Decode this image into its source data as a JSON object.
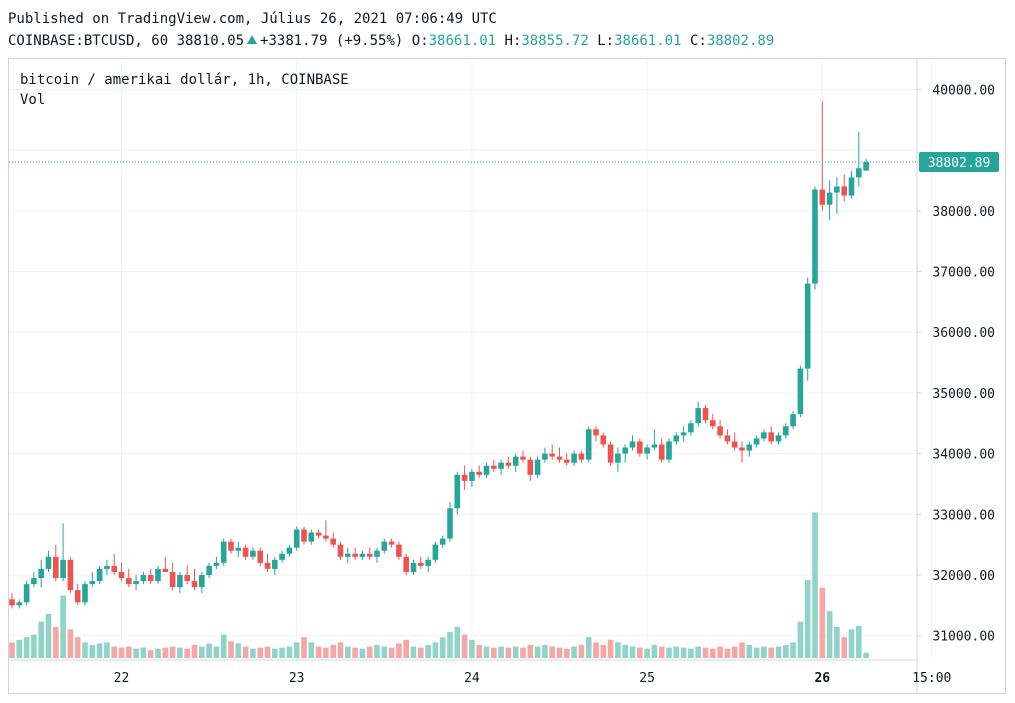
{
  "header": {
    "published": "Published on TradingView.com, Július 26, 2021 07:06:49 UTC",
    "symbol": "COINBASE:BTCUSD, 60",
    "last": "38810.05",
    "change": "+3381.79 (+9.55%)",
    "o_label": "O:",
    "o": "38661.01",
    "h_label": "H:",
    "h": "38855.72",
    "l_label": "L:",
    "l": "38661.01",
    "c_label": "C:",
    "c": "38802.89"
  },
  "legend": {
    "title": "bitcoin / amerikai dollár, 1h, COINBASE",
    "vol": "Vol"
  },
  "colors": {
    "up": "#26a69a",
    "down": "#ef5350",
    "vol_up": "#8fd3c9",
    "vol_down": "#f4a7a5",
    "grid": "#f0f3fa"
  },
  "chart_data": {
    "type": "candlestick",
    "ylim": [
      30600,
      40500
    ],
    "yticks": [
      "31000.00",
      "32000.00",
      "33000.00",
      "34000.00",
      "35000.00",
      "36000.00",
      "37000.00",
      "38000.00",
      "39000.00",
      "40000.00"
    ],
    "xticks": [
      {
        "label": "22",
        "i": 15
      },
      {
        "label": "23",
        "i": 39
      },
      {
        "label": "24",
        "i": 63
      },
      {
        "label": "25",
        "i": 87
      },
      {
        "label": "26",
        "i": 111
      },
      {
        "label": "15:00",
        "i": 126
      }
    ],
    "current_price": "38802.89",
    "bars": [
      {
        "o": 31600,
        "h": 31700,
        "l": 31450,
        "c": 31500,
        "v": 0.3
      },
      {
        "o": 31500,
        "h": 31600,
        "l": 31450,
        "c": 31550,
        "v": 0.35
      },
      {
        "o": 31550,
        "h": 31900,
        "l": 31500,
        "c": 31850,
        "v": 0.4
      },
      {
        "o": 31850,
        "h": 32050,
        "l": 31800,
        "c": 31950,
        "v": 0.45
      },
      {
        "o": 31950,
        "h": 32250,
        "l": 31800,
        "c": 32100,
        "v": 0.7
      },
      {
        "o": 32100,
        "h": 32400,
        "l": 32050,
        "c": 32300,
        "v": 0.85
      },
      {
        "o": 32300,
        "h": 32500,
        "l": 31900,
        "c": 31950,
        "v": 0.6
      },
      {
        "o": 31950,
        "h": 32850,
        "l": 31900,
        "c": 32250,
        "v": 1.2
      },
      {
        "o": 32250,
        "h": 32300,
        "l": 31700,
        "c": 31750,
        "v": 0.55
      },
      {
        "o": 31750,
        "h": 31850,
        "l": 31500,
        "c": 31550,
        "v": 0.4
      },
      {
        "o": 31550,
        "h": 31900,
        "l": 31500,
        "c": 31850,
        "v": 0.3
      },
      {
        "o": 31850,
        "h": 32050,
        "l": 31800,
        "c": 31900,
        "v": 0.25
      },
      {
        "o": 31900,
        "h": 32150,
        "l": 31850,
        "c": 32100,
        "v": 0.28
      },
      {
        "o": 32100,
        "h": 32250,
        "l": 32000,
        "c": 32150,
        "v": 0.3
      },
      {
        "o": 32150,
        "h": 32350,
        "l": 32000,
        "c": 32050,
        "v": 0.22
      },
      {
        "o": 32050,
        "h": 32200,
        "l": 31900,
        "c": 31950,
        "v": 0.2
      },
      {
        "o": 31950,
        "h": 32100,
        "l": 31800,
        "c": 31850,
        "v": 0.22
      },
      {
        "o": 31850,
        "h": 32000,
        "l": 31750,
        "c": 31900,
        "v": 0.18
      },
      {
        "o": 31900,
        "h": 32050,
        "l": 31850,
        "c": 32000,
        "v": 0.2
      },
      {
        "o": 32000,
        "h": 32100,
        "l": 31850,
        "c": 31900,
        "v": 0.15
      },
      {
        "o": 31900,
        "h": 32150,
        "l": 31850,
        "c": 32100,
        "v": 0.18
      },
      {
        "o": 32100,
        "h": 32300,
        "l": 32050,
        "c": 32050,
        "v": 0.2
      },
      {
        "o": 32050,
        "h": 32200,
        "l": 31750,
        "c": 31800,
        "v": 0.22
      },
      {
        "o": 31800,
        "h": 32050,
        "l": 31700,
        "c": 32000,
        "v": 0.2
      },
      {
        "o": 32000,
        "h": 32150,
        "l": 31850,
        "c": 31900,
        "v": 0.18
      },
      {
        "o": 31900,
        "h": 32100,
        "l": 31750,
        "c": 31800,
        "v": 0.25
      },
      {
        "o": 31800,
        "h": 32050,
        "l": 31700,
        "c": 32000,
        "v": 0.22
      },
      {
        "o": 32000,
        "h": 32200,
        "l": 31950,
        "c": 32150,
        "v": 0.28
      },
      {
        "o": 32150,
        "h": 32300,
        "l": 32100,
        "c": 32200,
        "v": 0.22
      },
      {
        "o": 32200,
        "h": 32600,
        "l": 32150,
        "c": 32550,
        "v": 0.45
      },
      {
        "o": 32550,
        "h": 32600,
        "l": 32350,
        "c": 32400,
        "v": 0.32
      },
      {
        "o": 32400,
        "h": 32550,
        "l": 32300,
        "c": 32450,
        "v": 0.28
      },
      {
        "o": 32450,
        "h": 32500,
        "l": 32250,
        "c": 32300,
        "v": 0.22
      },
      {
        "o": 32300,
        "h": 32450,
        "l": 32250,
        "c": 32400,
        "v": 0.18
      },
      {
        "o": 32400,
        "h": 32450,
        "l": 32150,
        "c": 32200,
        "v": 0.2
      },
      {
        "o": 32200,
        "h": 32350,
        "l": 32050,
        "c": 32100,
        "v": 0.22
      },
      {
        "o": 32100,
        "h": 32300,
        "l": 32000,
        "c": 32250,
        "v": 0.18
      },
      {
        "o": 32250,
        "h": 32400,
        "l": 32200,
        "c": 32350,
        "v": 0.2
      },
      {
        "o": 32350,
        "h": 32500,
        "l": 32300,
        "c": 32450,
        "v": 0.22
      },
      {
        "o": 32450,
        "h": 32800,
        "l": 32400,
        "c": 32750,
        "v": 0.3
      },
      {
        "o": 32750,
        "h": 32800,
        "l": 32500,
        "c": 32550,
        "v": 0.4
      },
      {
        "o": 32550,
        "h": 32750,
        "l": 32500,
        "c": 32700,
        "v": 0.3
      },
      {
        "o": 32700,
        "h": 32750,
        "l": 32600,
        "c": 32650,
        "v": 0.22
      },
      {
        "o": 32650,
        "h": 32900,
        "l": 32550,
        "c": 32600,
        "v": 0.2
      },
      {
        "o": 32600,
        "h": 32700,
        "l": 32450,
        "c": 32500,
        "v": 0.25
      },
      {
        "o": 32500,
        "h": 32550,
        "l": 32250,
        "c": 32300,
        "v": 0.3
      },
      {
        "o": 32300,
        "h": 32450,
        "l": 32200,
        "c": 32350,
        "v": 0.22
      },
      {
        "o": 32350,
        "h": 32450,
        "l": 32250,
        "c": 32300,
        "v": 0.2
      },
      {
        "o": 32300,
        "h": 32400,
        "l": 32250,
        "c": 32350,
        "v": 0.18
      },
      {
        "o": 32350,
        "h": 32450,
        "l": 32250,
        "c": 32300,
        "v": 0.22
      },
      {
        "o": 32300,
        "h": 32450,
        "l": 32200,
        "c": 32400,
        "v": 0.25
      },
      {
        "o": 32400,
        "h": 32600,
        "l": 32350,
        "c": 32550,
        "v": 0.22
      },
      {
        "o": 32550,
        "h": 32600,
        "l": 32450,
        "c": 32500,
        "v": 0.2
      },
      {
        "o": 32500,
        "h": 32550,
        "l": 32250,
        "c": 32300,
        "v": 0.28
      },
      {
        "o": 32300,
        "h": 32350,
        "l": 32000,
        "c": 32050,
        "v": 0.35
      },
      {
        "o": 32050,
        "h": 32250,
        "l": 32000,
        "c": 32200,
        "v": 0.22
      },
      {
        "o": 32200,
        "h": 32300,
        "l": 32100,
        "c": 32150,
        "v": 0.2
      },
      {
        "o": 32150,
        "h": 32300,
        "l": 32050,
        "c": 32250,
        "v": 0.25
      },
      {
        "o": 32250,
        "h": 32550,
        "l": 32200,
        "c": 32500,
        "v": 0.3
      },
      {
        "o": 32500,
        "h": 32650,
        "l": 32450,
        "c": 32600,
        "v": 0.4
      },
      {
        "o": 32600,
        "h": 33200,
        "l": 32550,
        "c": 33100,
        "v": 0.5
      },
      {
        "o": 33100,
        "h": 33700,
        "l": 33000,
        "c": 33650,
        "v": 0.6
      },
      {
        "o": 33650,
        "h": 33800,
        "l": 33400,
        "c": 33550,
        "v": 0.45
      },
      {
        "o": 33550,
        "h": 33750,
        "l": 33450,
        "c": 33700,
        "v": 0.35
      },
      {
        "o": 33700,
        "h": 33800,
        "l": 33600,
        "c": 33650,
        "v": 0.25
      },
      {
        "o": 33650,
        "h": 33850,
        "l": 33600,
        "c": 33800,
        "v": 0.22
      },
      {
        "o": 33800,
        "h": 33900,
        "l": 33700,
        "c": 33750,
        "v": 0.2
      },
      {
        "o": 33750,
        "h": 33900,
        "l": 33650,
        "c": 33850,
        "v": 0.22
      },
      {
        "o": 33850,
        "h": 33950,
        "l": 33750,
        "c": 33800,
        "v": 0.2
      },
      {
        "o": 33800,
        "h": 34000,
        "l": 33700,
        "c": 33950,
        "v": 0.22
      },
      {
        "o": 33950,
        "h": 34050,
        "l": 33850,
        "c": 33900,
        "v": 0.2
      },
      {
        "o": 33900,
        "h": 33950,
        "l": 33550,
        "c": 33650,
        "v": 0.25
      },
      {
        "o": 33650,
        "h": 33950,
        "l": 33600,
        "c": 33900,
        "v": 0.22
      },
      {
        "o": 33900,
        "h": 34100,
        "l": 33850,
        "c": 34000,
        "v": 0.25
      },
      {
        "o": 34000,
        "h": 34150,
        "l": 33900,
        "c": 33950,
        "v": 0.22
      },
      {
        "o": 33950,
        "h": 34100,
        "l": 33850,
        "c": 33900,
        "v": 0.2
      },
      {
        "o": 33900,
        "h": 34000,
        "l": 33800,
        "c": 33850,
        "v": 0.18
      },
      {
        "o": 33850,
        "h": 34050,
        "l": 33800,
        "c": 34000,
        "v": 0.22
      },
      {
        "o": 34000,
        "h": 34050,
        "l": 33850,
        "c": 33900,
        "v": 0.25
      },
      {
        "o": 33900,
        "h": 34450,
        "l": 33850,
        "c": 34400,
        "v": 0.4
      },
      {
        "o": 34400,
        "h": 34450,
        "l": 34200,
        "c": 34300,
        "v": 0.3
      },
      {
        "o": 34300,
        "h": 34350,
        "l": 34100,
        "c": 34150,
        "v": 0.25
      },
      {
        "o": 34150,
        "h": 34200,
        "l": 33800,
        "c": 33850,
        "v": 0.35
      },
      {
        "o": 33850,
        "h": 34100,
        "l": 33700,
        "c": 34000,
        "v": 0.3
      },
      {
        "o": 34000,
        "h": 34150,
        "l": 33850,
        "c": 34100,
        "v": 0.25
      },
      {
        "o": 34100,
        "h": 34300,
        "l": 34050,
        "c": 34200,
        "v": 0.22
      },
      {
        "o": 34200,
        "h": 34250,
        "l": 33950,
        "c": 34000,
        "v": 0.2
      },
      {
        "o": 34000,
        "h": 34150,
        "l": 33900,
        "c": 34100,
        "v": 0.18
      },
      {
        "o": 34100,
        "h": 34400,
        "l": 34050,
        "c": 34150,
        "v": 0.25
      },
      {
        "o": 34150,
        "h": 34250,
        "l": 33850,
        "c": 33900,
        "v": 0.22
      },
      {
        "o": 33900,
        "h": 34250,
        "l": 33850,
        "c": 34200,
        "v": 0.2
      },
      {
        "o": 34200,
        "h": 34350,
        "l": 34150,
        "c": 34300,
        "v": 0.22
      },
      {
        "o": 34300,
        "h": 34450,
        "l": 34200,
        "c": 34350,
        "v": 0.2
      },
      {
        "o": 34350,
        "h": 34550,
        "l": 34300,
        "c": 34500,
        "v": 0.18
      },
      {
        "o": 34500,
        "h": 34850,
        "l": 34450,
        "c": 34750,
        "v": 0.22
      },
      {
        "o": 34750,
        "h": 34800,
        "l": 34500,
        "c": 34550,
        "v": 0.2
      },
      {
        "o": 34550,
        "h": 34650,
        "l": 34400,
        "c": 34450,
        "v": 0.18
      },
      {
        "o": 34450,
        "h": 34550,
        "l": 34250,
        "c": 34300,
        "v": 0.22
      },
      {
        "o": 34300,
        "h": 34400,
        "l": 34150,
        "c": 34200,
        "v": 0.18
      },
      {
        "o": 34200,
        "h": 34350,
        "l": 34050,
        "c": 34100,
        "v": 0.22
      },
      {
        "o": 34100,
        "h": 34200,
        "l": 33850,
        "c": 34050,
        "v": 0.3
      },
      {
        "o": 34050,
        "h": 34200,
        "l": 33950,
        "c": 34150,
        "v": 0.25
      },
      {
        "o": 34150,
        "h": 34300,
        "l": 34100,
        "c": 34250,
        "v": 0.2
      },
      {
        "o": 34250,
        "h": 34400,
        "l": 34200,
        "c": 34350,
        "v": 0.22
      },
      {
        "o": 34350,
        "h": 34450,
        "l": 34150,
        "c": 34200,
        "v": 0.2
      },
      {
        "o": 34200,
        "h": 34350,
        "l": 34150,
        "c": 34300,
        "v": 0.22
      },
      {
        "o": 34300,
        "h": 34500,
        "l": 34250,
        "c": 34450,
        "v": 0.25
      },
      {
        "o": 34450,
        "h": 34700,
        "l": 34400,
        "c": 34650,
        "v": 0.3
      },
      {
        "o": 34650,
        "h": 35450,
        "l": 34600,
        "c": 35400,
        "v": 0.7
      },
      {
        "o": 35400,
        "h": 36900,
        "l": 35200,
        "c": 36800,
        "v": 1.5
      },
      {
        "o": 36800,
        "h": 38400,
        "l": 36700,
        "c": 38350,
        "v": 2.8
      },
      {
        "o": 38350,
        "h": 39800,
        "l": 38000,
        "c": 38100,
        "v": 1.35
      },
      {
        "o": 38100,
        "h": 38500,
        "l": 37850,
        "c": 38300,
        "v": 0.9
      },
      {
        "o": 38300,
        "h": 38550,
        "l": 37950,
        "c": 38400,
        "v": 0.6
      },
      {
        "o": 38400,
        "h": 38600,
        "l": 38150,
        "c": 38250,
        "v": 0.4
      },
      {
        "o": 38250,
        "h": 38650,
        "l": 38200,
        "c": 38550,
        "v": 0.55
      },
      {
        "o": 38550,
        "h": 39300,
        "l": 38400,
        "c": 38700,
        "v": 0.62
      },
      {
        "o": 38661,
        "h": 38856,
        "l": 38661,
        "c": 38803,
        "v": 0.1
      }
    ]
  }
}
